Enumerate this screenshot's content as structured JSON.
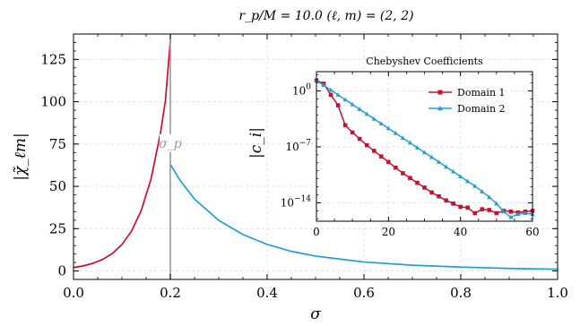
{
  "chart_data": [
    {
      "type": "line",
      "title": "r_p/M = 10.0   (ℓ, m) = (2, 2)",
      "xlabel": "σ",
      "ylabel": "|χ̃_ℓm|",
      "xlim": [
        0.0,
        1.0
      ],
      "ylim": [
        -5,
        140
      ],
      "xticks": [
        "0.0",
        "0.2",
        "0.4",
        "0.6",
        "0.8",
        "1.0"
      ],
      "yticks": [
        "0",
        "25",
        "50",
        "75",
        "100",
        "125"
      ],
      "grid": true,
      "annotation": {
        "text": "σ_p",
        "x": 0.2
      },
      "series": [
        {
          "color": "#c8102e",
          "x": [
            0.0,
            0.02,
            0.04,
            0.06,
            0.08,
            0.1,
            0.12,
            0.14,
            0.16,
            0.18,
            0.19,
            0.2
          ],
          "y": [
            2.0,
            3.0,
            4.5,
            6.8,
            10.3,
            15.6,
            23.6,
            35.8,
            54.2,
            82.0,
            101.0,
            136.0
          ]
        },
        {
          "color": "#1f9fd4",
          "x": [
            0.2,
            0.22,
            0.25,
            0.3,
            0.35,
            0.4,
            0.45,
            0.5,
            0.6,
            0.7,
            0.8,
            0.9,
            1.0
          ],
          "y": [
            63.0,
            53.6,
            42.5,
            29.9,
            21.5,
            15.7,
            11.6,
            8.8,
            5.3,
            3.4,
            2.3,
            1.5,
            1.0
          ]
        }
      ]
    },
    {
      "type": "line",
      "title": "Chebyshev Coefficients",
      "xlabel": "",
      "ylabel": "|c_i|",
      "xlim": [
        0,
        60
      ],
      "ylim_log10": [
        -16.3,
        2.4
      ],
      "yscale": "log",
      "xticks": [
        "0",
        "20",
        "40",
        "60"
      ],
      "yticks": [
        "10^0",
        "10^-7",
        "10^-14"
      ],
      "legend": "top-right",
      "grid": true,
      "series": [
        {
          "name": "Domain 1",
          "color": "#c8102e",
          "marker": "square",
          "x": [
            0,
            2,
            4,
            6,
            8,
            10,
            12,
            14,
            16,
            18,
            20,
            22,
            24,
            26,
            28,
            30,
            32,
            34,
            36,
            38,
            40,
            42,
            44,
            46,
            48,
            50,
            52,
            54,
            56,
            58,
            60
          ],
          "log10_y": [
            1.3,
            0.9,
            -0.5,
            -1.8,
            -4.3,
            -5.2,
            -6.0,
            -6.8,
            -7.5,
            -8.2,
            -8.9,
            -9.6,
            -10.3,
            -10.9,
            -11.5,
            -12.1,
            -12.7,
            -13.2,
            -13.7,
            -14.1,
            -14.5,
            -14.6,
            -15.3,
            -14.8,
            -14.9,
            -15.3,
            -15.0,
            -15.1,
            -15.2,
            -15.1,
            -15.0
          ]
        },
        {
          "name": "Domain 2",
          "color": "#1f9fd4",
          "marker": "triangle",
          "x": [
            0,
            2,
            4,
            6,
            8,
            10,
            12,
            14,
            16,
            18,
            20,
            22,
            24,
            26,
            28,
            30,
            32,
            34,
            36,
            38,
            40,
            42,
            44,
            46,
            48,
            50,
            52,
            54,
            56,
            58,
            60
          ],
          "log10_y": [
            1.3,
            0.7,
            0.1,
            -0.5,
            -1.1,
            -1.7,
            -2.3,
            -2.9,
            -3.5,
            -4.1,
            -4.7,
            -5.3,
            -5.9,
            -6.5,
            -7.1,
            -7.7,
            -8.3,
            -8.9,
            -9.5,
            -10.1,
            -10.7,
            -11.3,
            -11.9,
            -12.6,
            -13.3,
            -14.1,
            -15.1,
            -15.8,
            -15.4,
            -15.3,
            -15.4
          ]
        }
      ]
    }
  ]
}
